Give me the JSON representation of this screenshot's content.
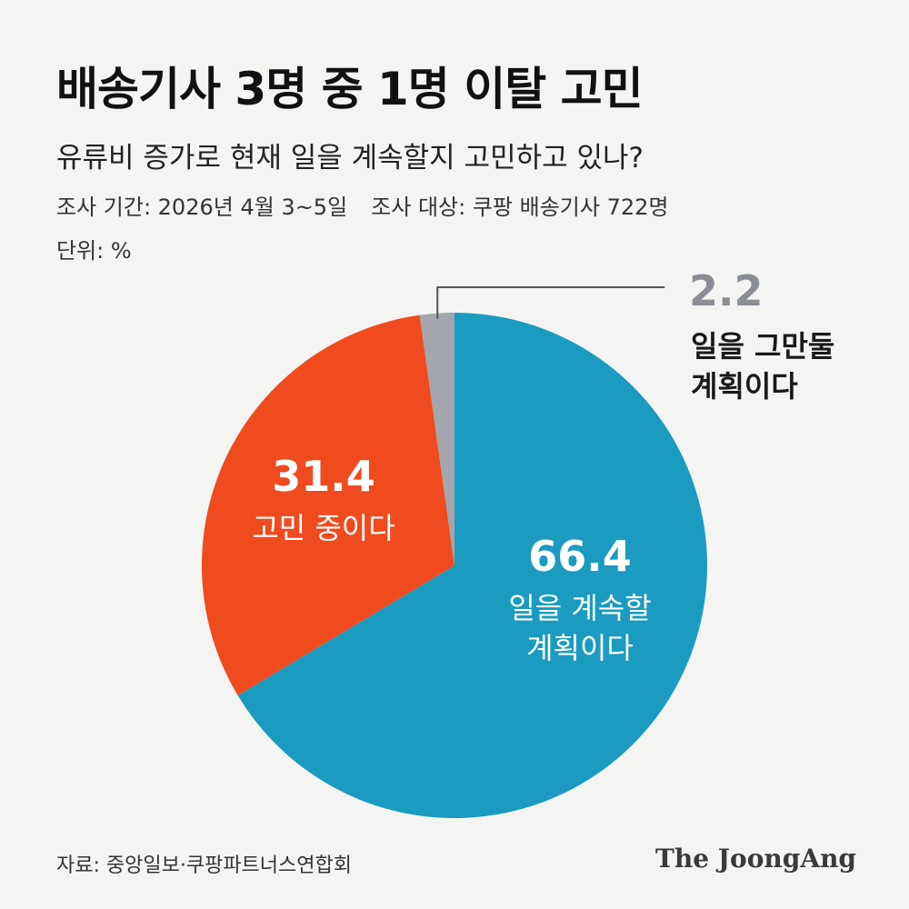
{
  "header": {
    "title": "배송기사 3명 중 1명 이탈 고민",
    "subtitle": "유류비 증가로 현재 일을 계속할지 고민하고 있나?",
    "survey_period": "조사 기간: 2026년 4월 3~5일",
    "survey_target": "조사 대상: 쿠팡 배송기사 722명",
    "unit": "단위: %"
  },
  "chart_data": {
    "type": "pie",
    "slices": [
      {
        "label": "일을 계속할 계획이다",
        "label_lines": [
          "일을 계속할",
          "계획이다"
        ],
        "value": 66.4,
        "display": "66.4",
        "color": "#1b9bbf"
      },
      {
        "label": "고민 중이다",
        "label_lines": [
          "고민 중이다"
        ],
        "value": 31.4,
        "display": "31.4",
        "color": "#f04b1e"
      },
      {
        "label": "일을 그만둘 계획이다",
        "label_lines": [
          "일을 그만둘",
          "계획이다"
        ],
        "value": 2.2,
        "display": "2.2",
        "color": "#a3a6ad"
      }
    ]
  },
  "footer": {
    "source": "자료: 중앙일보·쿠팡파트너스연합회",
    "logo": "The JoongAng"
  }
}
